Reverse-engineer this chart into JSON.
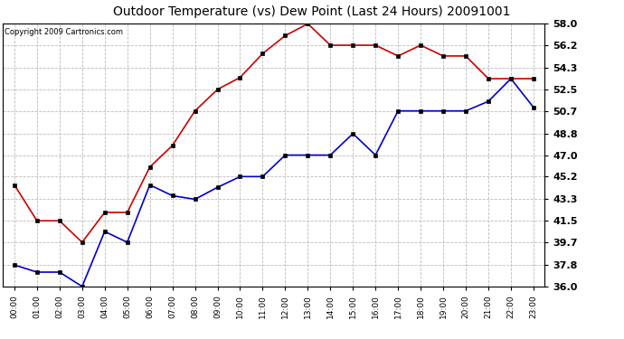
{
  "title": "Outdoor Temperature (vs) Dew Point (Last 24 Hours) 20091001",
  "copyright": "Copyright 2009 Cartronics.com",
  "x_labels": [
    "00:00",
    "01:00",
    "02:00",
    "03:00",
    "04:00",
    "05:00",
    "06:00",
    "07:00",
    "08:00",
    "09:00",
    "10:00",
    "11:00",
    "12:00",
    "13:00",
    "14:00",
    "15:00",
    "16:00",
    "17:00",
    "18:00",
    "19:00",
    "20:00",
    "21:00",
    "22:00",
    "23:00"
  ],
  "temp_data": [
    44.5,
    41.5,
    41.5,
    39.7,
    42.2,
    42.2,
    46.0,
    47.8,
    50.7,
    52.5,
    53.5,
    55.5,
    57.0,
    58.0,
    56.2,
    56.2,
    56.2,
    55.3,
    56.2,
    55.3,
    55.3,
    53.4,
    53.4,
    53.4
  ],
  "dew_data": [
    37.8,
    37.2,
    37.2,
    36.0,
    40.6,
    39.7,
    44.5,
    43.6,
    43.3,
    44.3,
    45.2,
    45.2,
    47.0,
    47.0,
    47.0,
    48.8,
    47.0,
    50.7,
    50.7,
    50.7,
    50.7,
    51.5,
    53.4,
    51.0
  ],
  "temp_color": "#cc0000",
  "dew_color": "#0000cc",
  "bg_color": "#ffffff",
  "grid_color": "#bbbbbb",
  "ylim": [
    36.0,
    58.0
  ],
  "ytick_values": [
    36.0,
    37.8,
    39.7,
    41.5,
    43.3,
    45.2,
    47.0,
    48.8,
    50.7,
    52.5,
    54.3,
    56.2,
    58.0
  ],
  "ytick_labels": [
    "36.0",
    "37.8",
    "39.7",
    "41.5",
    "43.3",
    "45.2",
    "47.0",
    "48.8",
    "50.7",
    "52.5",
    "54.3",
    "56.2",
    "58.0"
  ],
  "title_fontsize": 10,
  "copyright_fontsize": 6,
  "tick_fontsize": 8,
  "xtick_fontsize": 6.5
}
